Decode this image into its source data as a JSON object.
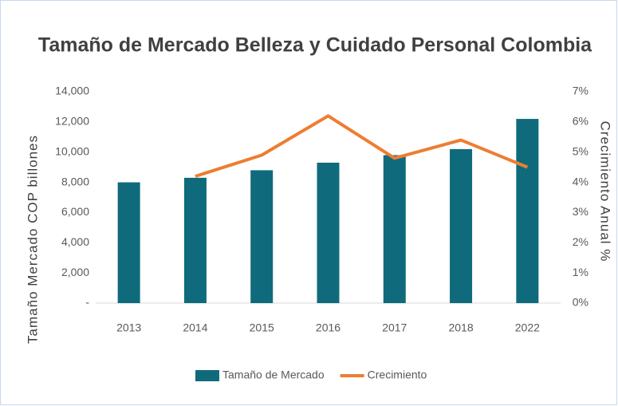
{
  "chart_data": {
    "type": "bar_line",
    "title": "Tamaño de Mercado Belleza y Cuidado Personal Colombia",
    "y_label": "Tamaño Mercado COP billones",
    "y2_label": "Crecimiento Anual %",
    "categories": [
      "2013",
      "2014",
      "2015",
      "2016",
      "2017",
      "2018",
      "2022"
    ],
    "series": [
      {
        "name": "Tamaño de Mercado",
        "type": "bar",
        "color": "#0f6b7b",
        "values": [
          8000,
          8300,
          8800,
          9300,
          9800,
          10200,
          12200
        ]
      },
      {
        "name": "Crecimiento",
        "type": "line",
        "axis": "y2",
        "color": "#ee7d31",
        "values": [
          null,
          4.2,
          4.9,
          6.2,
          4.8,
          5.4,
          4.5
        ]
      }
    ],
    "ylim": [
      0,
      14000
    ],
    "yticks": [
      {
        "value": 0,
        "label": "-"
      },
      {
        "value": 2000,
        "label": "2,000"
      },
      {
        "value": 4000,
        "label": "4,000"
      },
      {
        "value": 6000,
        "label": "6,000"
      },
      {
        "value": 8000,
        "label": "8,000"
      },
      {
        "value": 10000,
        "label": "10,000"
      },
      {
        "value": 12000,
        "label": "12,000"
      },
      {
        "value": 14000,
        "label": "14,000"
      }
    ],
    "y2lim": [
      0,
      7
    ],
    "y2ticks": [
      {
        "value": 0,
        "label": "0%"
      },
      {
        "value": 1,
        "label": "1%"
      },
      {
        "value": 2,
        "label": "2%"
      },
      {
        "value": 3,
        "label": "3%"
      },
      {
        "value": 4,
        "label": "4%"
      },
      {
        "value": 5,
        "label": "5%"
      },
      {
        "value": 6,
        "label": "6%"
      },
      {
        "value": 7,
        "label": "7%"
      }
    ],
    "legend": "bottom"
  }
}
